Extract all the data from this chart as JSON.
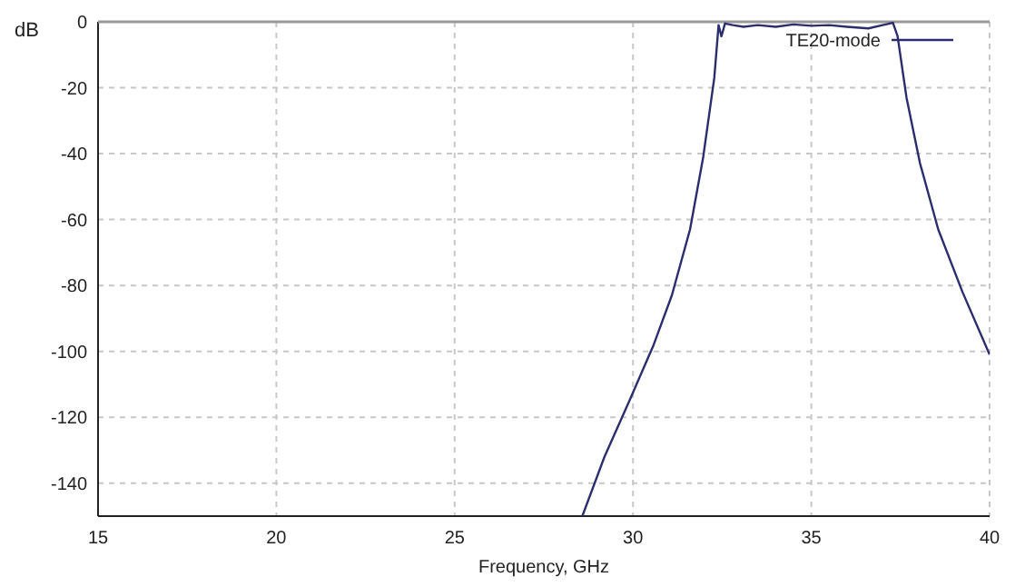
{
  "chart_data": {
    "type": "line",
    "xlabel": "Frequency, GHz",
    "ylabel": "dB",
    "series": [
      {
        "name": "TE20-mode",
        "color": "#2b2d6e",
        "x": [
          28.58,
          29.2,
          29.9,
          30.58,
          31.09,
          31.6,
          31.97,
          32.28,
          32.4,
          32.48,
          32.58,
          32.8,
          33.1,
          33.5,
          34.0,
          34.5,
          35.0,
          35.5,
          36.0,
          36.6,
          37.0,
          37.29,
          37.42,
          37.67,
          38.05,
          38.56,
          39.24,
          40
        ],
        "values": [
          -150,
          -132,
          -115,
          -98,
          -83,
          -63,
          -41,
          -17,
          -1,
          -4.4,
          -0.5,
          -1,
          -1.5,
          -1,
          -1.5,
          -0.8,
          -1.2,
          -1,
          -1.5,
          -2,
          -1,
          -0.3,
          -4.4,
          -23,
          -43,
          -63,
          -82,
          -101
        ]
      }
    ],
    "xlim": [
      15,
      40
    ],
    "ylim": [
      -150,
      0
    ],
    "xticks": [
      15,
      20,
      25,
      30,
      35,
      40
    ],
    "yticks": [
      0,
      -20,
      -40,
      -60,
      -80,
      -100,
      -120,
      -140
    ],
    "grid": true,
    "legend": "top right",
    "marker": "none",
    "line_style": "solid"
  }
}
